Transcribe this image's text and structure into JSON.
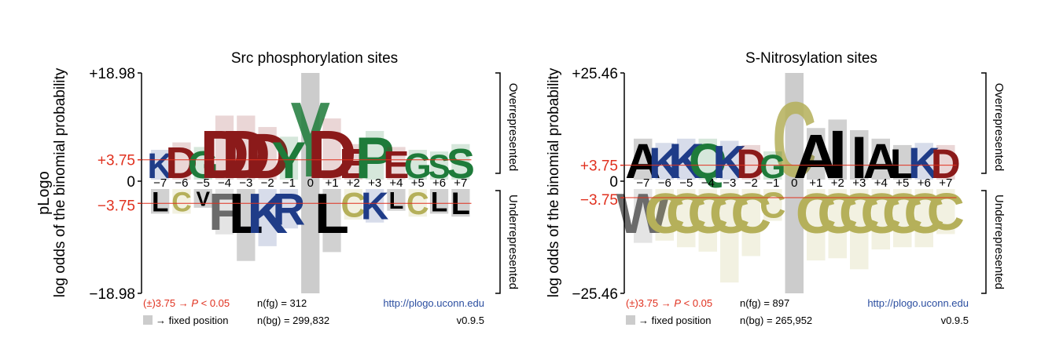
{
  "figure": {
    "outer_ylabel": "pLogo",
    "ylabel": "log odds of the binomial probability",
    "over_label": "Overrepresented",
    "under_label": "Underrepresented",
    "positions": [
      "−7",
      "−6",
      "−5",
      "−4",
      "−3",
      "−2",
      "−1",
      "0",
      "+1",
      "+2",
      "+3",
      "+4",
      "+5",
      "+6",
      "+7"
    ],
    "colors": {
      "acidic": "#8b1a1a",
      "basic": "#1f3c88",
      "polar": "#1e7b3a",
      "hydrophobic": "#000000",
      "special": "#b5b05a",
      "aromatic": "#6b6b6b",
      "significance": "#e0301e",
      "link": "#2b4ea0",
      "fixed": "#cccccc"
    }
  },
  "chart_data": [
    {
      "type": "bar",
      "title": "Src phosphorylation sites",
      "ymax_label": "+18.98",
      "ymin_label": "−18.98",
      "ylim": [
        -18.98,
        18.98
      ],
      "sig_pos_label": "+3.75",
      "sig_neg_label": "−3.75",
      "zero_label": "0",
      "significance": 3.75,
      "fixed_position": "0",
      "fixed_residue": "Y",
      "categories": [
        "−7",
        "−6",
        "−5",
        "−4",
        "−3",
        "−2",
        "−1",
        "0",
        "+1",
        "+2",
        "+3",
        "+4",
        "+5",
        "+6",
        "+7"
      ],
      "over_values": [
        5.5,
        6.8,
        6.0,
        11.5,
        11.5,
        9.5,
        7.8,
        18.98,
        11.0,
        6.5,
        8.8,
        6.0,
        5.5,
        5.2,
        6.5
      ],
      "under_values": [
        -5.5,
        -5.5,
        -4.5,
        -9.0,
        -13.5,
        -11.0,
        -8.0,
        -18.98,
        -12.0,
        -6.5,
        -7.0,
        -5.0,
        -6.0,
        -5.5,
        -6.0
      ],
      "top_residues": [
        "K",
        "D",
        "G",
        "D",
        "D",
        "D",
        "Y",
        "Y",
        "D",
        "E",
        "P",
        "E",
        "G",
        "S",
        "S"
      ],
      "bottom_residues": [
        "L",
        "C",
        "V",
        "F",
        "L",
        "K",
        "R",
        "Y",
        "L",
        "C",
        "K",
        "L",
        "C",
        "L",
        "L"
      ],
      "footer": {
        "sig_text": "(±)3.75 → ",
        "p_text": "P",
        "p_rest": " < 0.05",
        "nfg": "n(fg) = 312",
        "url": "http://plogo.uconn.edu",
        "fixed_text": "→ fixed position",
        "nbg": "n(bg) = 299,832",
        "version": "v0.9.5"
      }
    },
    {
      "type": "bar",
      "title": "S-Nitrosylation sites",
      "ymax_label": "+25.46",
      "ymin_label": "−25.46",
      "ylim": [
        -25.46,
        25.46
      ],
      "sig_pos_label": "+3.75",
      "sig_neg_label": "−3.75",
      "zero_label": "0",
      "significance": 3.75,
      "fixed_position": "0",
      "fixed_residue": "C",
      "categories": [
        "−7",
        "−6",
        "−5",
        "−4",
        "−3",
        "−2",
        "−1",
        "0",
        "+1",
        "+2",
        "+3",
        "+4",
        "+5",
        "+6",
        "+7"
      ],
      "over_values": [
        10.0,
        9.0,
        10.0,
        10.0,
        9.5,
        8.5,
        7.0,
        25.46,
        12.5,
        14.5,
        12.0,
        10.0,
        8.5,
        9.0,
        8.5
      ],
      "under_values": [
        -14.0,
        -13.5,
        -15.0,
        -16.0,
        -23.0,
        -17.0,
        -9.0,
        -25.46,
        -18.0,
        -17.5,
        -20.0,
        -15.5,
        -15.0,
        -15.0,
        -12.0
      ],
      "top_residues": [
        "A",
        "K",
        "K",
        "Q",
        "K",
        "D",
        "G",
        "C",
        "A",
        "I",
        "I",
        "A",
        "L",
        "K",
        "D"
      ],
      "bottom_residues": [
        "W",
        "C",
        "C",
        "C",
        "C",
        "C",
        "C",
        "C",
        "C",
        "C",
        "C",
        "C",
        "C",
        "C",
        "C"
      ],
      "footer": {
        "sig_text": "(±)3.75 → ",
        "p_text": "P",
        "p_rest": " < 0.05",
        "nfg": "n(fg) = 897",
        "url": "http://plogo.uconn.edu",
        "fixed_text": "→ fixed position",
        "nbg": "n(bg) = 265,952",
        "version": "v0.9.5"
      }
    }
  ]
}
